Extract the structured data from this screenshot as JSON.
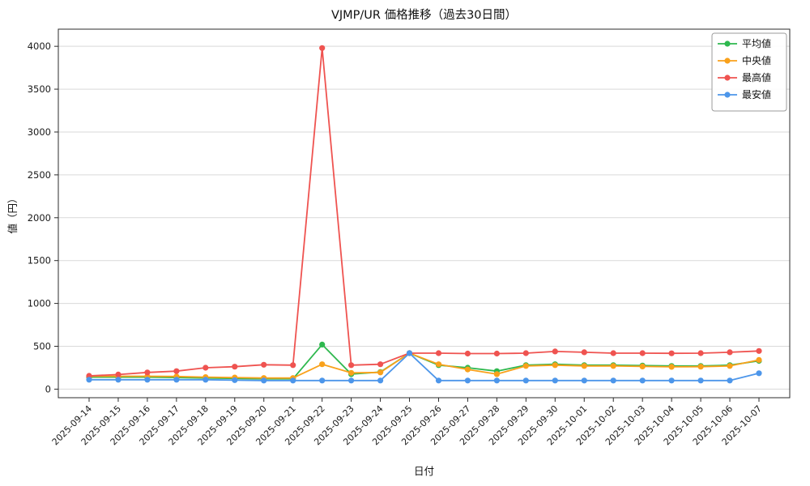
{
  "chart_data": {
    "type": "line",
    "title": "VJMP/UR 価格推移（過去30日間）",
    "xlabel": "日付",
    "ylabel": "値（円）",
    "grid": true,
    "legend_position": "upper right",
    "ylim": [
      -100,
      4200
    ],
    "yticks": [
      0,
      500,
      1000,
      1500,
      2000,
      2500,
      3000,
      3500,
      4000
    ],
    "categories": [
      "2025-09-14",
      "2025-09-15",
      "2025-09-16",
      "2025-09-17",
      "2025-09-18",
      "2025-09-19",
      "2025-09-20",
      "2025-09-21",
      "2025-09-22",
      "2025-09-23",
      "2025-09-24",
      "2025-09-25",
      "2025-09-26",
      "2025-09-27",
      "2025-09-28",
      "2025-09-29",
      "2025-09-30",
      "2025-10-01",
      "2025-10-02",
      "2025-10-03",
      "2025-10-04",
      "2025-10-05",
      "2025-10-06",
      "2025-10-07"
    ],
    "series": [
      {
        "name": "平均値",
        "color": "#2eb84e",
        "values": [
          140,
          140,
          140,
          135,
          130,
          125,
          120,
          120,
          520,
          175,
          200,
          420,
          280,
          250,
          210,
          280,
          290,
          280,
          280,
          275,
          270,
          270,
          280,
          330
        ]
      },
      {
        "name": "中央値",
        "color": "#f9a11b",
        "values": [
          150,
          150,
          150,
          148,
          140,
          135,
          130,
          130,
          290,
          190,
          195,
          420,
          290,
          230,
          175,
          270,
          280,
          270,
          270,
          265,
          260,
          262,
          270,
          340
        ]
      },
      {
        "name": "最高値",
        "color": "#ef5350",
        "values": [
          155,
          170,
          195,
          210,
          250,
          262,
          285,
          280,
          3980,
          280,
          290,
          420,
          420,
          415,
          415,
          420,
          440,
          430,
          420,
          420,
          418,
          420,
          430,
          445
        ]
      },
      {
        "name": "最安値",
        "color": "#4d96ea",
        "values": [
          110,
          110,
          110,
          110,
          110,
          105,
          100,
          100,
          100,
          100,
          100,
          420,
          100,
          100,
          100,
          100,
          100,
          100,
          100,
          100,
          100,
          100,
          100,
          185
        ]
      }
    ]
  }
}
